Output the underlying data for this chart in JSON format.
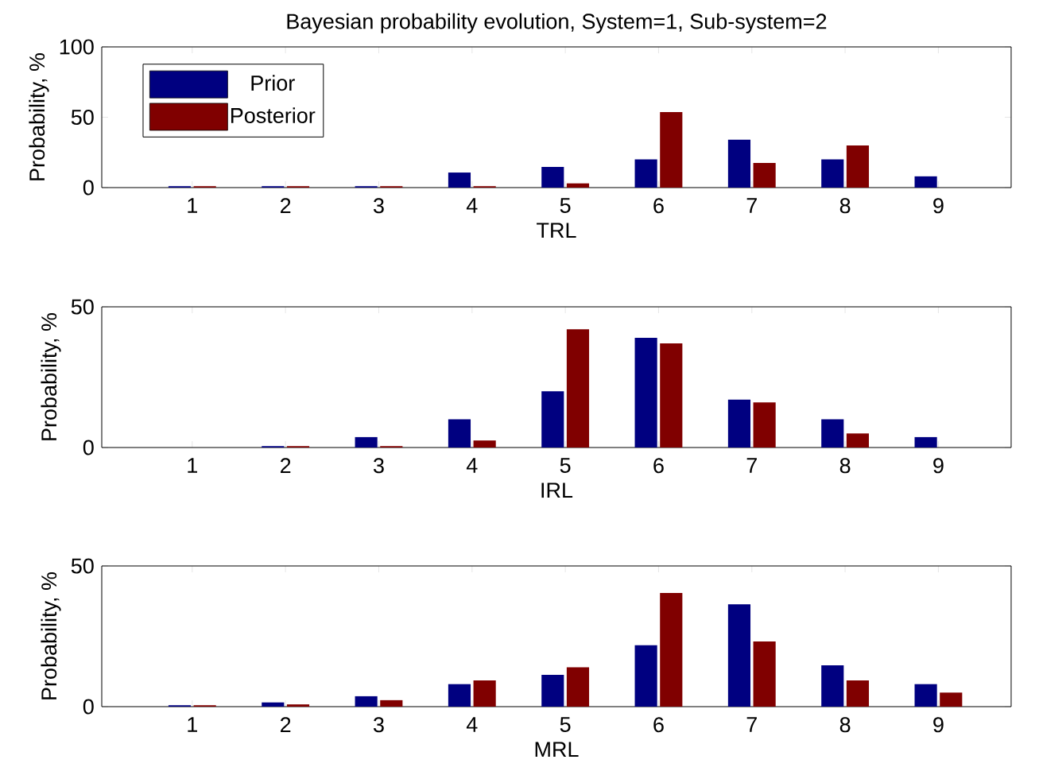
{
  "chart_data": [
    {
      "type": "bar",
      "title": "Bayesian probability evolution, System=1, Sub-system=2",
      "xlabel": "TRL",
      "ylabel": "Probability, %",
      "categories": [
        "1",
        "2",
        "3",
        "4",
        "5",
        "6",
        "7",
        "8",
        "9"
      ],
      "ylim": [
        0,
        100
      ],
      "yticks": [
        0,
        50,
        100
      ],
      "legend": "top left",
      "series": [
        {
          "name": "Prior",
          "color": "#000080",
          "values": [
            1,
            1,
            1,
            10.7,
            14.7,
            20,
            34,
            20,
            8
          ]
        },
        {
          "name": "Posterior",
          "color": "#800000",
          "values": [
            1,
            1,
            1,
            1,
            3,
            53.7,
            17.5,
            30,
            0
          ]
        }
      ]
    },
    {
      "type": "bar",
      "xlabel": "IRL",
      "ylabel": "Probability, %",
      "categories": [
        "1",
        "2",
        "3",
        "4",
        "5",
        "6",
        "7",
        "8",
        "9"
      ],
      "ylim": [
        0,
        50
      ],
      "yticks": [
        0,
        50
      ],
      "series": [
        {
          "color": "#000080",
          "values": [
            0,
            0.5,
            3.7,
            10,
            20,
            39,
            17,
            10,
            3.7
          ]
        },
        {
          "color": "#800000",
          "values": [
            0,
            0.5,
            0.5,
            2.5,
            42,
            37,
            16,
            5,
            0
          ]
        }
      ]
    },
    {
      "type": "bar",
      "xlabel": "MRL",
      "ylabel": "Probability, %",
      "categories": [
        "1",
        "2",
        "3",
        "4",
        "5",
        "6",
        "7",
        "8",
        "9"
      ],
      "ylim": [
        0,
        50
      ],
      "yticks": [
        0,
        50
      ],
      "series": [
        {
          "color": "#000080",
          "values": [
            0.5,
            1.5,
            3.7,
            8,
            11.3,
            21.8,
            36.4,
            14.7,
            8
          ]
        },
        {
          "color": "#800000",
          "values": [
            0.5,
            0.8,
            2.3,
            9.3,
            14,
            40.4,
            23.2,
            9.3,
            5
          ]
        }
      ]
    }
  ]
}
